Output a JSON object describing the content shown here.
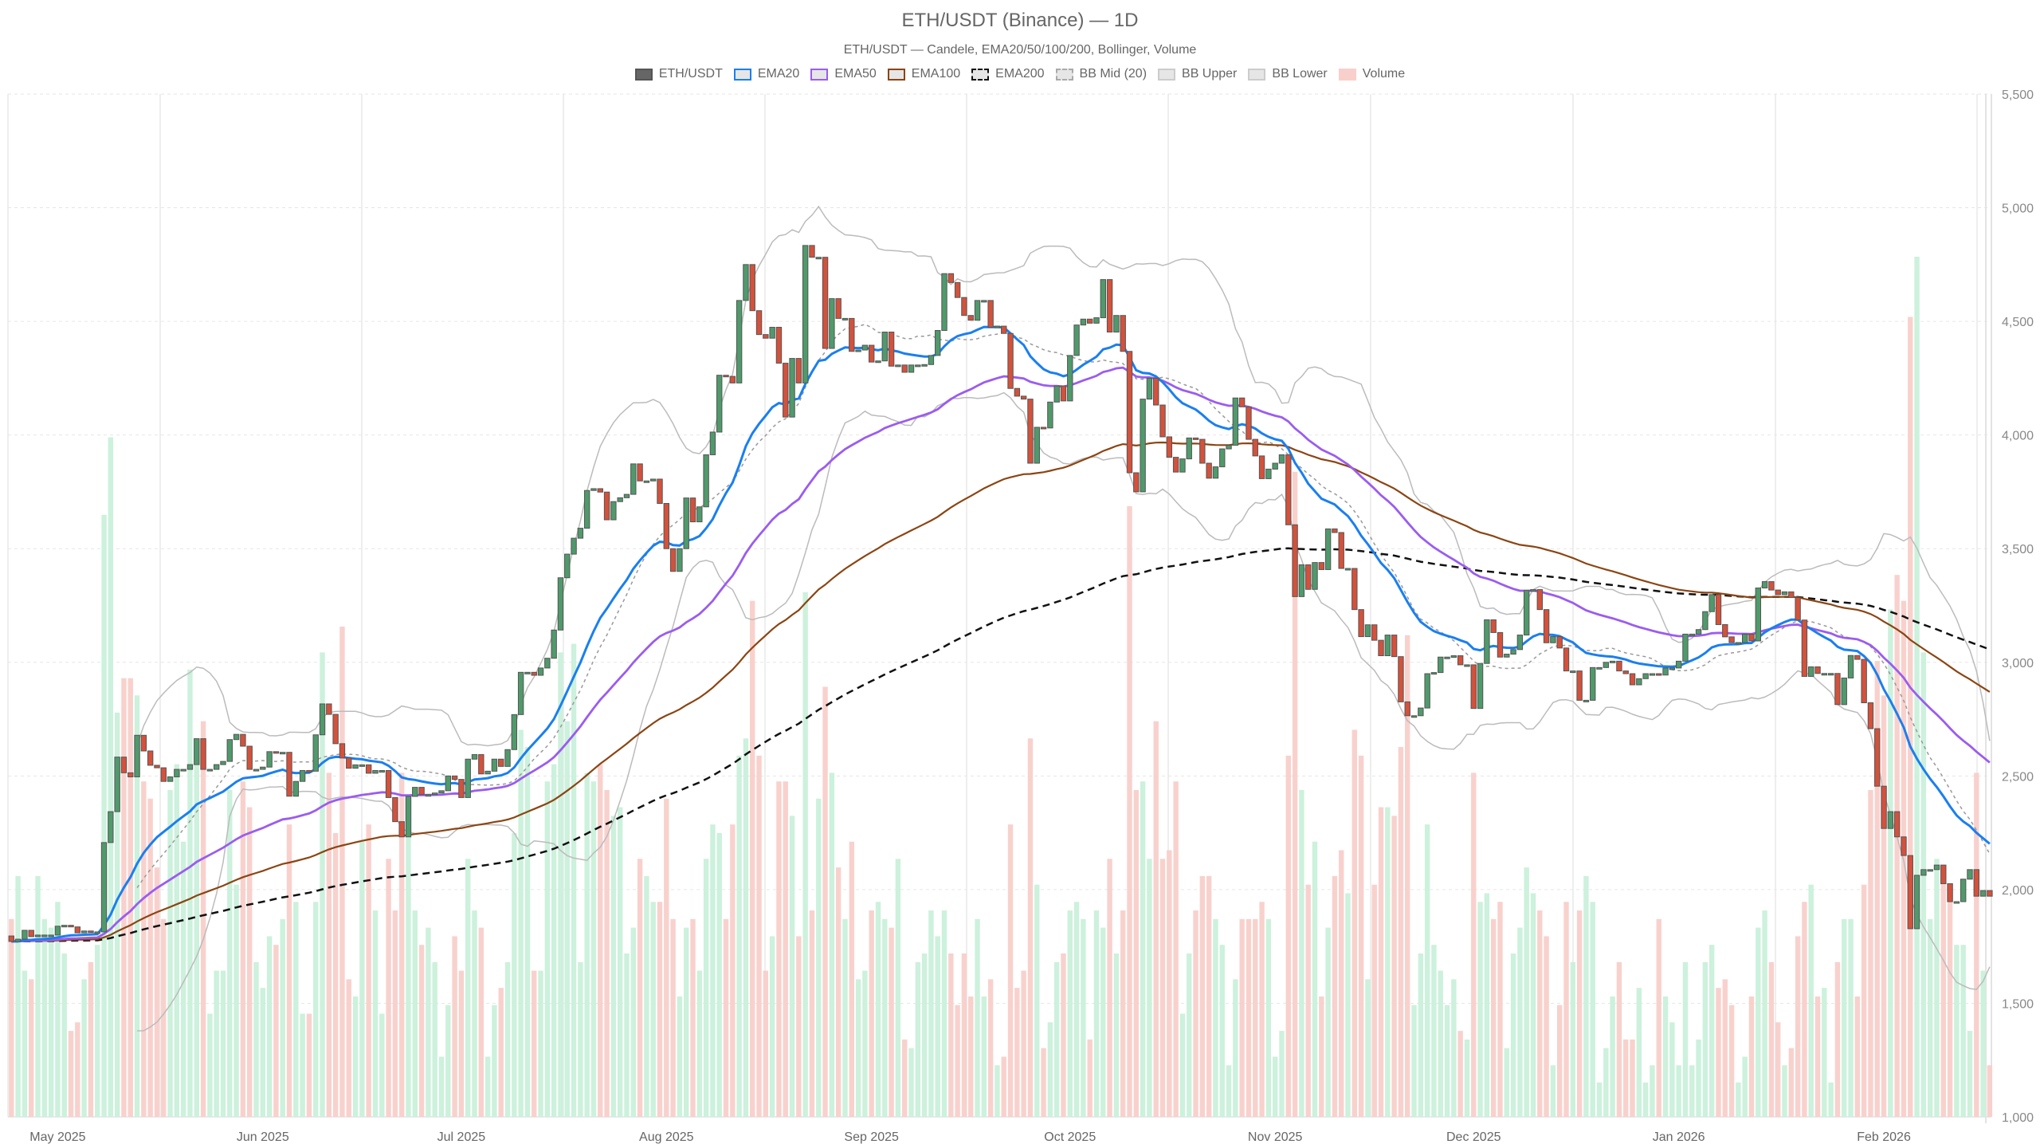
{
  "title": "ETH/USDT (Binance) — 1D",
  "subtitle": "ETH/USDT — Candele, EMA20/50/100/200, Bollinger, Volume",
  "legend": [
    {
      "label": "ETH/USDT",
      "fill": "#666666",
      "border": "#555555",
      "style": "solid"
    },
    {
      "label": "EMA20",
      "fill": "#e6e6e6",
      "border": "#1a7ff0",
      "style": "solid"
    },
    {
      "label": "EMA50",
      "fill": "#e6e6e6",
      "border": "#9b5cf0",
      "style": "solid"
    },
    {
      "label": "EMA100",
      "fill": "#e6e6e6",
      "border": "#8b4513",
      "style": "solid"
    },
    {
      "label": "EMA200",
      "fill": "#e6e6e6",
      "border": "#111111",
      "style": "dashed"
    },
    {
      "label": "BB Mid (20)",
      "fill": "#e6e6e6",
      "border": "#aaaaaa",
      "style": "dashed"
    },
    {
      "label": "BB Upper",
      "fill": "#e6e6e6",
      "border": "#cccccc",
      "style": "solid"
    },
    {
      "label": "BB Lower",
      "fill": "#e6e6e6",
      "border": "#cccccc",
      "style": "solid"
    },
    {
      "label": "Volume",
      "fill": "#f8cfca",
      "border": "#f8cfca",
      "style": "solid"
    }
  ],
  "chart_data": {
    "type": "candlestick",
    "interval": "1D",
    "first_date": "2025-04-24",
    "first_open": 1796,
    "ylim": [
      1000,
      5500
    ],
    "y_ticks": [
      1000,
      1500,
      2000,
      2500,
      3000,
      3500,
      4000,
      4500,
      5000,
      5500
    ],
    "y_tick_labels": [
      "1,000",
      "1,500",
      "2,000",
      "2,500",
      "3,000",
      "3,500",
      "4,000",
      "4,500",
      "5,000",
      "5,500"
    ],
    "x_tick_labels": [
      "May 2025",
      "Jun 2025",
      "Jul 2025",
      "Aug 2025",
      "Sep 2025",
      "Oct 2025",
      "Nov 2025",
      "Dec 2025",
      "Jan 2026",
      "Feb 2026"
    ],
    "x_tick_dates": [
      "2025-05-01",
      "2025-06-01",
      "2025-07-01",
      "2025-08-01",
      "2025-09-01",
      "2025-10-01",
      "2025-11-01",
      "2025-12-01",
      "2026-01-01",
      "2026-02-01"
    ],
    "grid": true,
    "legend_position": "top-center",
    "colors": {
      "up": "#4f9a6b",
      "down": "#d4513b",
      "outline": "#555555",
      "vol_up": "#c9f0da",
      "vol_down": "#f8cfca",
      "ema20": "#1a7ff0",
      "ema50": "#9b5cf0",
      "ema100": "#8b4513",
      "ema200": "#111111",
      "bb_mid": "#999999",
      "bb_band": "#bbbbbb"
    },
    "indicators": {
      "ema": [
        20,
        50,
        100,
        200
      ],
      "bollinger": {
        "period": 20,
        "stddev": 2
      }
    },
    "close": [
      1772,
      1782,
      1821,
      1793,
      1800,
      1800,
      1800,
      1839,
      1843,
      1836,
      1810,
      1818,
      1814,
      1814,
      2207,
      2343,
      2583,
      2514,
      2496,
      2679,
      2610,
      2547,
      2536,
      2476,
      2496,
      2529,
      2529,
      2550,
      2664,
      2529,
      2529,
      2550,
      2564,
      2660,
      2683,
      2631,
      2529,
      2529,
      2539,
      2607,
      2604,
      2604,
      2411,
      2476,
      2524,
      2521,
      2681,
      2817,
      2771,
      2642,
      2579,
      2534,
      2549,
      2549,
      2512,
      2524,
      2524,
      2405,
      2299,
      2232,
      2410,
      2450,
      2418,
      2418,
      2425,
      2435,
      2500,
      2485,
      2405,
      2574,
      2594,
      2509,
      2521,
      2574,
      2542,
      2616,
      2770,
      2956,
      2956,
      2943,
      2975,
      3018,
      3142,
      3372,
      3476,
      3546,
      3590,
      3756,
      3764,
      3749,
      3627,
      3707,
      3724,
      3739,
      3873,
      3798,
      3798,
      3806,
      3699,
      3500,
      3400,
      3500,
      3723,
      3618,
      3684,
      3913,
      4013,
      4263,
      4258,
      4229,
      4592,
      4750,
      4547,
      4442,
      4426,
      4474,
      4316,
      4079,
      4337,
      4229,
      4834,
      4782,
      4782,
      4381,
      4600,
      4513,
      4513,
      4368,
      4374,
      4395,
      4321,
      4326,
      4453,
      4303,
      4308,
      4276,
      4308,
      4308,
      4310,
      4350,
      4460,
      4710,
      4671,
      4605,
      4526,
      4505,
      4592,
      4592,
      4474,
      4479,
      4447,
      4205,
      4171,
      4158,
      3876,
      4034,
      4031,
      4145,
      4216,
      4150,
      4350,
      4484,
      4510,
      4492,
      4516,
      4684,
      4453,
      4526,
      4368,
      3834,
      3750,
      4158,
      4250,
      4132,
      3992,
      3902,
      3837,
      3895,
      3987,
      3981,
      3876,
      3810,
      3860,
      3939,
      3955,
      4163,
      4124,
      3981,
      3908,
      3808,
      3850,
      3876,
      3913,
      3605,
      3289,
      3429,
      3321,
      3439,
      3408,
      3587,
      3571,
      3413,
      3413,
      3232,
      3113,
      3165,
      3097,
      3029,
      3120,
      3025,
      2826,
      2765,
      2765,
      2799,
      2950,
      2955,
      3023,
      3023,
      3029,
      2989,
      2989,
      2797,
      2995,
      3187,
      3131,
      3023,
      3036,
      3056,
      3120,
      3316,
      3320,
      3232,
      3086,
      3113,
      3063,
      2962,
      2962,
      2833,
      2833,
      2977,
      2977,
      3000,
      3005,
      2962,
      2950,
      2901,
      2928,
      2950,
      2950,
      2944,
      2975,
      2975,
      3005,
      3124,
      3124,
      3144,
      3223,
      3298,
      3166,
      3112,
      3087,
      3087,
      3124,
      3094,
      3327,
      3355,
      3318,
      3298,
      3310,
      3285,
      3186,
      2938,
      2980,
      2951,
      2951,
      2951,
      2814,
      2931,
      3030,
      3013,
      2822,
      2708,
      2455,
      2269,
      2343,
      2232,
      2150,
      1828,
      2063,
      2088,
      2088,
      2108,
      2026,
      1947,
      1947,
      2046,
      2088,
      1971,
      1996,
      1971
    ],
    "volume_pct_of_max": [
      23,
      28,
      17,
      16,
      28,
      23,
      22,
      25,
      19,
      10,
      11,
      16,
      18,
      20,
      70,
      79,
      47,
      51,
      51,
      49,
      39,
      37,
      29,
      23,
      38,
      41,
      32,
      52,
      41,
      46,
      12,
      17,
      17,
      38,
      27,
      39,
      36,
      18,
      15,
      21,
      20,
      23,
      34,
      25,
      12,
      12,
      25,
      54,
      40,
      33,
      57,
      16,
      14,
      32,
      34,
      24,
      12,
      30,
      24,
      40,
      34,
      24,
      20,
      22,
      18,
      7,
      13,
      21,
      17,
      30,
      24,
      22,
      7,
      13,
      15,
      18,
      33,
      45,
      43,
      17,
      17,
      39,
      41,
      54,
      46,
      55,
      18,
      40,
      39,
      41,
      38,
      35,
      36,
      19,
      22,
      30,
      28,
      25,
      25,
      37,
      23,
      14,
      22,
      23,
      17,
      30,
      34,
      33,
      23,
      34,
      42,
      44,
      60,
      42,
      17,
      21,
      39,
      39,
      35,
      21,
      61,
      24,
      37,
      50,
      40,
      29,
      23,
      32,
      16,
      17,
      24,
      25,
      23,
      22,
      30,
      9,
      8,
      18,
      19,
      24,
      21,
      24,
      19,
      13,
      19,
      14,
      23,
      14,
      16,
      6,
      7,
      34,
      15,
      17,
      44,
      27,
      8,
      11,
      18,
      19,
      24,
      25,
      23,
      9,
      24,
      22,
      30,
      19,
      24,
      71,
      38,
      39,
      30,
      46,
      30,
      31,
      39,
      12,
      19,
      24,
      28,
      28,
      23,
      20,
      6,
      16,
      23,
      23,
      23,
      25,
      23,
      7,
      10,
      42,
      75,
      38,
      27,
      32,
      14,
      22,
      28,
      31,
      26,
      45,
      42,
      16,
      27,
      36,
      36,
      35,
      43,
      56,
      13,
      19,
      34,
      20,
      17,
      13,
      16,
      10,
      9,
      40,
      25,
      26,
      23,
      25,
      8,
      19,
      22,
      29,
      26,
      24,
      21,
      6,
      13,
      25,
      18,
      24,
      28,
      25,
      4,
      8,
      14,
      18,
      9,
      9,
      15,
      4,
      6,
      23,
      14,
      11,
      6,
      18,
      6,
      9,
      18,
      20,
      15,
      16,
      13,
      4,
      7,
      14,
      22,
      24,
      18,
      11,
      6,
      8,
      21,
      25,
      27,
      14,
      15,
      4,
      18,
      23,
      23,
      14,
      27,
      38,
      53,
      49,
      59,
      63,
      60,
      93,
      100,
      54,
      23,
      30,
      29,
      25,
      20,
      20,
      10,
      40,
      17,
      6
    ]
  }
}
